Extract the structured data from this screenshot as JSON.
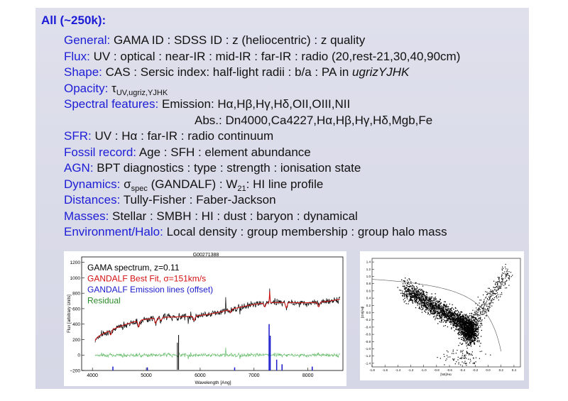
{
  "heading": "All (~250k):",
  "rows": [
    {
      "key": "General:",
      "text": "GAMA ID : SDSS ID : z (heliocentric) : z quality"
    },
    {
      "key": "Flux:",
      "text": "UV : optical : near-IR : mid-IR : far-IR : radio (20,rest-21,30,40,90cm)"
    },
    {
      "key": "Shape:",
      "text": "CAS : Sersic index: half-light radii : b/a : PA in",
      "italic": "ugrizYJHK"
    },
    {
      "key": "Opacity:",
      "sym": "τ",
      "sub": "UV,ugriz,YJHK"
    },
    {
      "key": "Spectral features:",
      "text": "Emission: Hα,Hβ,Hγ,Hδ,OII,OIII,NII"
    },
    {
      "text": "Abs.: Dn4000,Ca4227,Hα,Hβ,Hγ,Hδ,Mgb,Fe"
    },
    {
      "key": "SFR:",
      "text": "UV : Hα : far-IR : radio continuum"
    },
    {
      "key": "Fossil record:",
      "text": "Age : SFH : element abundance"
    },
    {
      "key": "AGN:",
      "text": "BPT diagnostics : type : strength : ionisation state"
    },
    {
      "key": "Dynamics:",
      "sym": "σ",
      "sub": "spec",
      "text": " (GANDALF) : W",
      "sub2": "21",
      "text2": ": HI line profile"
    },
    {
      "key": "Distances:",
      "text": "Tully-Fisher : Faber-Jackson"
    },
    {
      "key": "Masses:",
      "text": "Stellar : SMBH : HI : dust : baryon : dynamical"
    },
    {
      "key": "Environment/Halo:",
      "text": "Local density : group membership : group halo mass"
    }
  ],
  "spectrum": {
    "id": "G00271388",
    "ylabel": "Flux [arbitrary Units]",
    "xlabel": "Wavelength [Ang]",
    "xticks": [
      "4000",
      "5000",
      "6000",
      "7000",
      "8000"
    ],
    "yticks": [
      "1200",
      "1000",
      "800",
      "600",
      "400",
      "200",
      "0",
      "−200"
    ],
    "legend": [
      {
        "label": "GAMA spectrum, z=0.11",
        "color": "#000000"
      },
      {
        "label": "GANDALF Best Fit, σ=151km/s",
        "color": "#d41010"
      },
      {
        "label": "GANDALF Emission lines (offset)",
        "color": "#1a1acc"
      },
      {
        "label": "Residual",
        "color": "#2a8a2a"
      }
    ]
  },
  "bpt": {
    "xlabel": "[NII]/Hα",
    "ylabel": "[OIII]/Hβ",
    "xticks": [
      "-1.8",
      "-1.6",
      "-1.4",
      "-1.2",
      "-1.0",
      "-0.8",
      "-0.6",
      "-0.4",
      "-0.2",
      "0.0",
      "0.2",
      "0.4"
    ],
    "yticks": [
      "1.4",
      "1.2",
      "1.0",
      "0.8",
      "0.6",
      "0.4",
      "0.2",
      "0.0",
      "-0.2",
      "-0.4",
      "-0.6",
      "-0.8",
      "-1.0",
      "-1.2",
      "-1.4"
    ]
  }
}
